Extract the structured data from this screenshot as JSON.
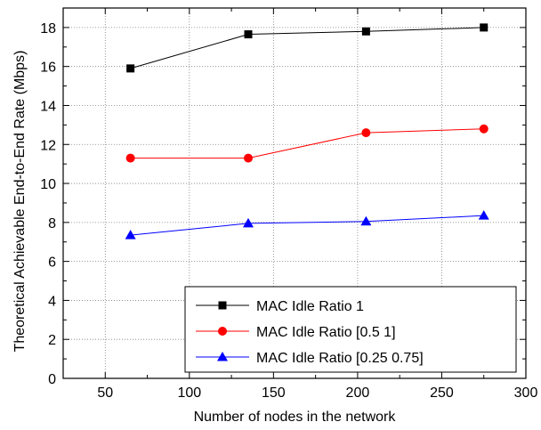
{
  "chart_data": {
    "type": "line",
    "title": "",
    "xlabel": "Number of nodes in the network",
    "ylabel": "Theoretical Achievable End-to-End Rate (Mbps)",
    "xlim": [
      25,
      300
    ],
    "ylim": [
      0,
      19
    ],
    "xticks": [
      50,
      100,
      150,
      200,
      250,
      300
    ],
    "yticks": [
      0,
      2,
      4,
      6,
      8,
      10,
      12,
      14,
      16,
      18
    ],
    "grid": true,
    "legend_position": "bottom-right",
    "x": [
      65,
      135,
      205,
      275
    ],
    "series": [
      {
        "name": "MAC Idle Ratio 1",
        "values": [
          15.9,
          17.65,
          17.8,
          18.0
        ],
        "color": "#000000",
        "marker": "square"
      },
      {
        "name": "MAC Idle Ratio [0.5 1]",
        "values": [
          11.3,
          11.3,
          12.6,
          12.8
        ],
        "color": "#ff0000",
        "marker": "circle"
      },
      {
        "name": "MAC Idle Ratio [0.25 0.75]",
        "values": [
          7.35,
          7.95,
          8.05,
          8.35
        ],
        "color": "#0000ff",
        "marker": "triangle"
      }
    ]
  }
}
